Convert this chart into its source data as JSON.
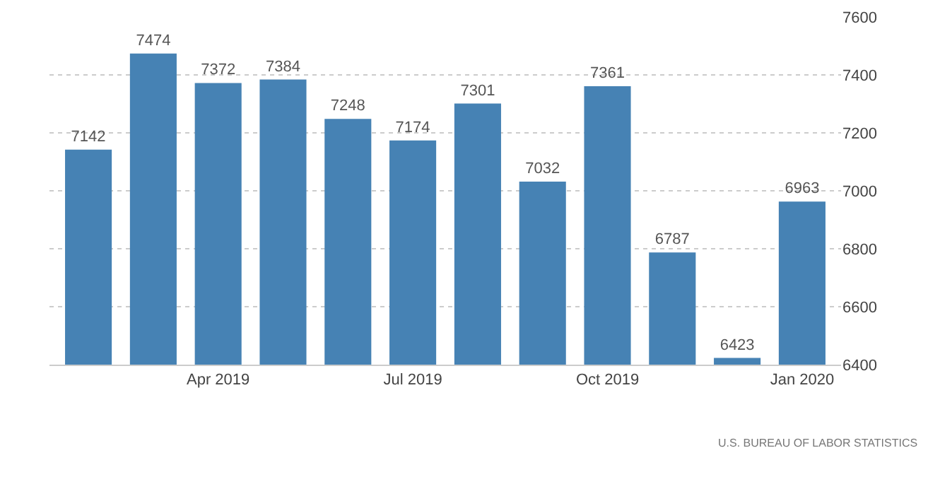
{
  "chart_data": {
    "type": "bar",
    "categories": [
      null,
      null,
      "Apr 2019",
      null,
      null,
      "Jul 2019",
      null,
      null,
      "Oct 2019",
      null,
      null,
      "Jan 2020"
    ],
    "values": [
      7142,
      7474,
      7372,
      7384,
      7248,
      7174,
      7301,
      7032,
      7361,
      6787,
      6423,
      6963
    ],
    "color": "#4682b4",
    "ylim": [
      6400,
      7600
    ],
    "yticks": [
      6400,
      6600,
      6800,
      7000,
      7200,
      7400,
      7600
    ],
    "grid": "y",
    "data_labels": true,
    "annotations": [
      "U.S. BUREAU OF LABOR STATISTICS"
    ]
  }
}
